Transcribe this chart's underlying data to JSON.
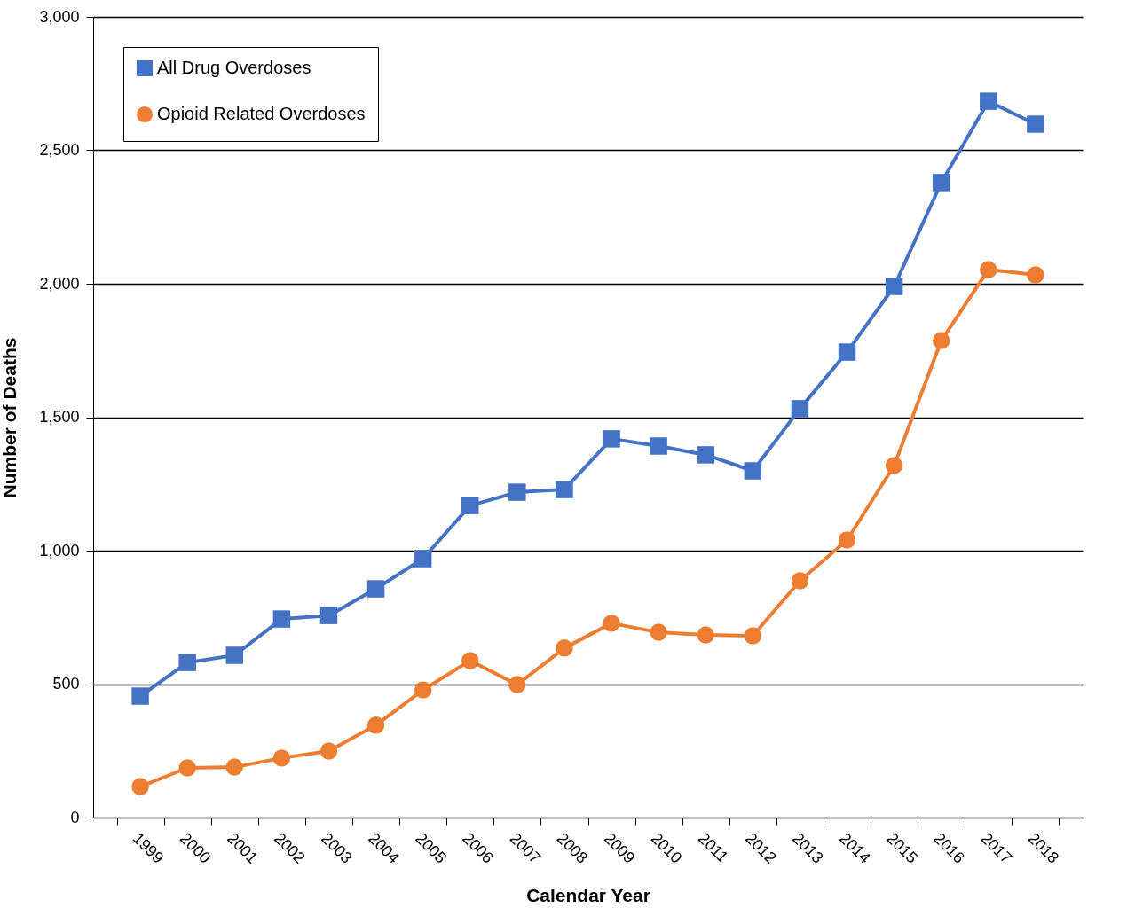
{
  "chart_data": {
    "type": "line",
    "xlabel": "Calendar Year",
    "ylabel": "Number of Deaths",
    "categories": [
      "1999",
      "2000",
      "2001",
      "2002",
      "2003",
      "2004",
      "2005",
      "2006",
      "2007",
      "2008",
      "2009",
      "2010",
      "2011",
      "2012",
      "2013",
      "2014",
      "2015",
      "2016",
      "2017",
      "2018"
    ],
    "series": [
      {
        "name": "All Drug Overdoses",
        "color": "#4472c4",
        "marker": "square",
        "values": [
          455,
          581,
          608,
          744,
          757,
          857,
          970,
          1169,
          1219,
          1229,
          1419,
          1392,
          1359,
          1299,
          1532,
          1744,
          1990,
          2379,
          2684,
          2598
        ]
      },
      {
        "name": "Opioid Related Overdoses",
        "color": "#ed7d31",
        "marker": "circle",
        "values": [
          116,
          186,
          189,
          223,
          249,
          346,
          478,
          588,
          498,
          635,
          728,
          694,
          684,
          681,
          887,
          1040,
          1319,
          1787,
          2053,
          2033
        ]
      }
    ],
    "ylim": [
      0,
      3000
    ],
    "yticks": [
      {
        "value": 0,
        "label": "0"
      },
      {
        "value": 500,
        "label": "500"
      },
      {
        "value": 1000,
        "label": "1,000"
      },
      {
        "value": 1500,
        "label": "1,500"
      },
      {
        "value": 2000,
        "label": "2,000"
      },
      {
        "value": 2500,
        "label": "2,500"
      },
      {
        "value": 3000,
        "label": "3,000"
      }
    ],
    "grid": "y",
    "legend": "top left",
    "line_style": "solid"
  }
}
